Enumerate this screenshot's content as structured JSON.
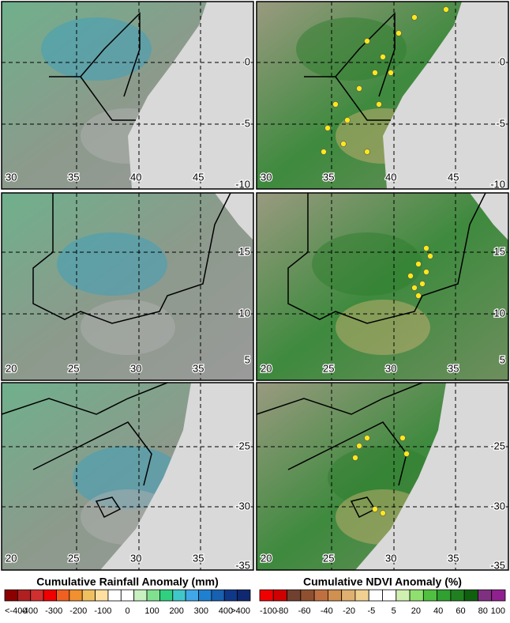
{
  "panels": [
    {
      "lon_labels": [
        "30",
        "35",
        "40",
        "45"
      ],
      "lat_labels": [
        "0",
        "-5",
        "-10"
      ]
    },
    {
      "lon_labels": [
        "20",
        "25",
        "30",
        "35"
      ],
      "lat_labels": [
        "15",
        "10",
        "5"
      ]
    },
    {
      "lon_labels": [
        "20",
        "25",
        "30",
        "35"
      ],
      "lat_labels": [
        "-25",
        "-30",
        "-35"
      ]
    }
  ],
  "legends": [
    {
      "title": "Cumulative Rainfall Anomaly (mm)",
      "labels": [
        "<-400",
        "-400",
        "-300",
        "-200",
        "-100",
        "0",
        "100",
        "200",
        "300",
        "400",
        ">400"
      ],
      "colors": [
        "#8c0000",
        "#b02020",
        "#d03030",
        "#f00000",
        "#f06020",
        "#f09030",
        "#f0c060",
        "#ffe0a0",
        "#ffffff",
        "#ffffff",
        "#c8f0c0",
        "#80e090",
        "#30d080",
        "#40c8c8",
        "#40a8e8",
        "#2080d0",
        "#1860b0",
        "#103888",
        "#102870"
      ]
    },
    {
      "title": "Cumulative NDVI Anomaly (%)",
      "labels": [
        "-100",
        "-80",
        "-60",
        "-40",
        "-20",
        "-5",
        "5",
        "20",
        "40",
        "60",
        "80",
        "100"
      ],
      "colors": [
        "#f00000",
        "#d00000",
        "#704030",
        "#905030",
        "#c07040",
        "#d09050",
        "#e0b070",
        "#f0d090",
        "#ffffff",
        "#ffffff",
        "#d0f0b0",
        "#90e070",
        "#50c040",
        "#30a030",
        "#208020",
        "#106010",
        "#803080",
        "#902090"
      ]
    }
  ]
}
